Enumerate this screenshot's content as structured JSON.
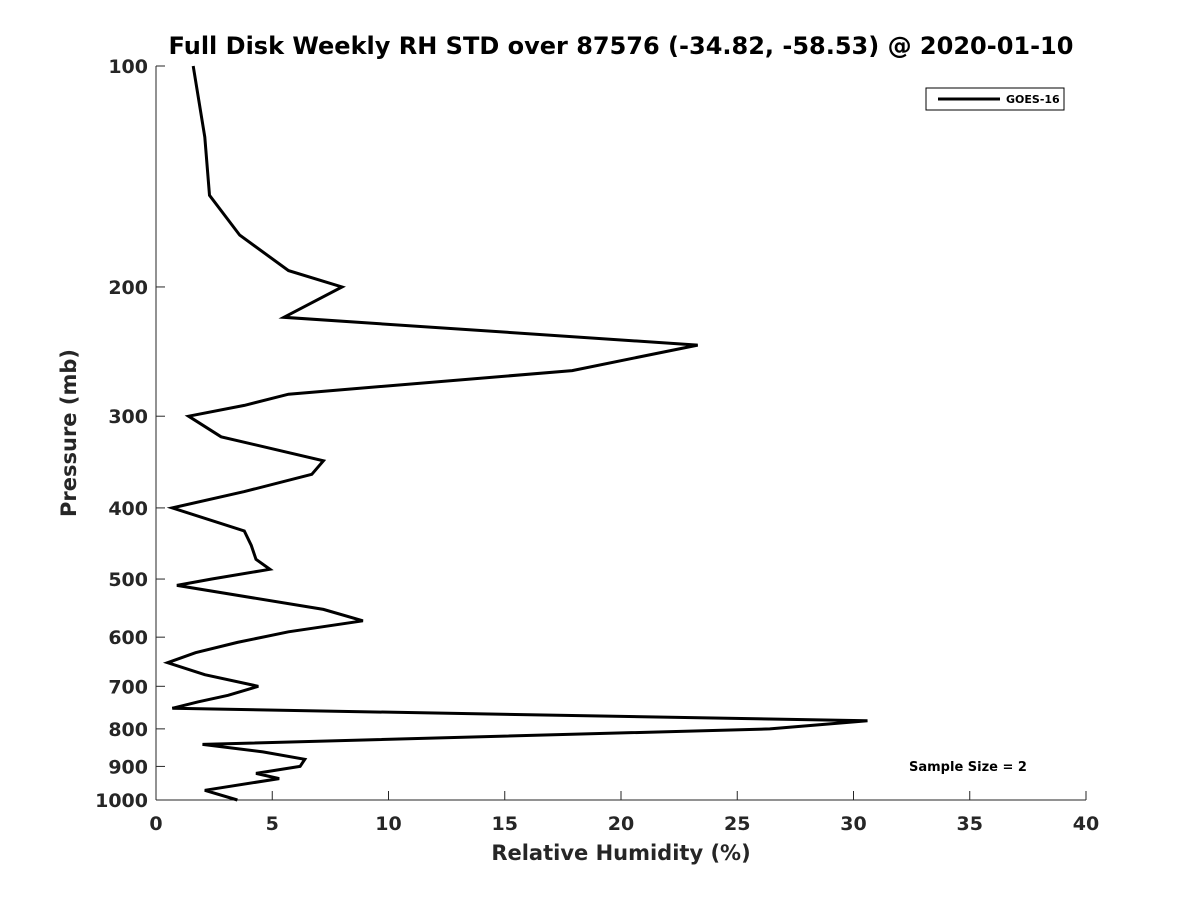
{
  "chart_data": {
    "type": "line",
    "title": "Full Disk Weekly RH STD over 87576 (-34.82, -58.53) @ 2020-01-10",
    "xlabel": "Relative Humidity (%)",
    "ylabel": "Pressure (mb)",
    "xlim": [
      0,
      40
    ],
    "ylim": [
      100,
      1000
    ],
    "y_scale": "log",
    "y_reversed": true,
    "x_ticks": [
      0,
      5,
      10,
      15,
      20,
      25,
      30,
      35,
      40
    ],
    "y_ticks": [
      100,
      200,
      300,
      400,
      500,
      600,
      700,
      800,
      900,
      1000
    ],
    "grid": false,
    "legend_position": "top-right",
    "series": [
      {
        "name": "GOES-16",
        "color": "#000000",
        "points": [
          [
            1.6,
            100
          ],
          [
            2.1,
            125
          ],
          [
            2.3,
            150
          ],
          [
            3.6,
            170
          ],
          [
            5.7,
            190
          ],
          [
            8.0,
            200
          ],
          [
            5.5,
            220
          ],
          [
            23.3,
            240
          ],
          [
            17.9,
            260
          ],
          [
            5.7,
            280
          ],
          [
            3.8,
            290
          ],
          [
            1.4,
            300
          ],
          [
            2.8,
            320
          ],
          [
            7.2,
            345
          ],
          [
            6.7,
            360
          ],
          [
            3.8,
            380
          ],
          [
            0.7,
            400
          ],
          [
            3.8,
            430
          ],
          [
            4.1,
            450
          ],
          [
            4.3,
            470
          ],
          [
            4.9,
            485
          ],
          [
            2.4,
            500
          ],
          [
            0.9,
            510
          ],
          [
            7.2,
            550
          ],
          [
            8.9,
            570
          ],
          [
            5.7,
            590
          ],
          [
            3.5,
            610
          ],
          [
            1.7,
            630
          ],
          [
            0.5,
            650
          ],
          [
            2.1,
            675
          ],
          [
            4.4,
            700
          ],
          [
            3.1,
            720
          ],
          [
            1.8,
            735
          ],
          [
            0.7,
            750
          ],
          [
            30.6,
            780
          ],
          [
            26.4,
            800
          ],
          [
            2.0,
            840
          ],
          [
            4.6,
            860
          ],
          [
            6.4,
            880
          ],
          [
            6.2,
            900
          ],
          [
            4.3,
            920
          ],
          [
            5.3,
            935
          ],
          [
            2.1,
            970
          ],
          [
            3.5,
            1000
          ]
        ]
      }
    ],
    "annotations": [
      "Sample Size = 2"
    ]
  }
}
